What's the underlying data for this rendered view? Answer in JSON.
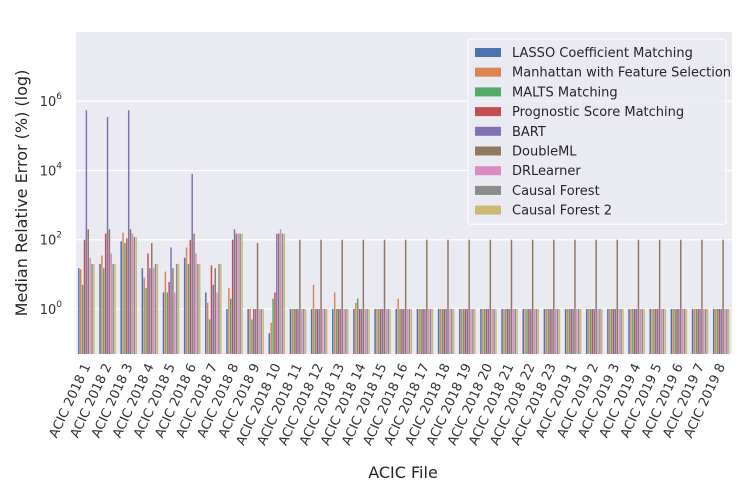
{
  "chart_data": {
    "type": "bar",
    "xlabel": "ACIC File",
    "ylabel": "Median Relative Error (%) (log)",
    "yscale": "log",
    "ylim": [
      0.05,
      100000000
    ],
    "yticks": [
      {
        "value": 1,
        "base": "10",
        "exp": "0"
      },
      {
        "value": 100,
        "base": "10",
        "exp": "2"
      },
      {
        "value": 10000,
        "base": "10",
        "exp": "4"
      },
      {
        "value": 1000000,
        "base": "10",
        "exp": "6"
      }
    ],
    "grid": true,
    "legend_position": "top-right",
    "categories": [
      "ACIC 2018 1",
      "ACIC 2018 2",
      "ACIC 2018 3",
      "ACIC 2018 4",
      "ACIC 2018 5",
      "ACIC 2018 6",
      "ACIC 2018 7",
      "ACIC 2018 8",
      "ACIC 2018 9",
      "ACIC 2018 10",
      "ACIC 2018 11",
      "ACIC 2018 12",
      "ACIC 2018 13",
      "ACIC 2018 14",
      "ACIC 2018 15",
      "ACIC 2018 16",
      "ACIC 2018 17",
      "ACIC 2018 18",
      "ACIC 2018 19",
      "ACIC 2018 20",
      "ACIC 2018 21",
      "ACIC 2018 22",
      "ACIC 2018 23",
      "ACIC 2019 1",
      "ACIC 2019 2",
      "ACIC 2019 3",
      "ACIC 2019 4",
      "ACIC 2019 5",
      "ACIC 2019 6",
      "ACIC 2019 7",
      "ACIC 2019 8"
    ],
    "series": [
      {
        "name": "LASSO Coefficient Matching",
        "color": "#4c72b0",
        "values": [
          15,
          20,
          90,
          15,
          3,
          30,
          3,
          1,
          1,
          0.2,
          1,
          1,
          1,
          1,
          1,
          1,
          1,
          1,
          1,
          1,
          1,
          1,
          1,
          1,
          1,
          1,
          1,
          1,
          1,
          1,
          1
        ]
      },
      {
        "name": "Manhattan with Feature Selection",
        "color": "#dd8452",
        "values": [
          14,
          35,
          160,
          8,
          12,
          60,
          1.5,
          4,
          1,
          0.4,
          1,
          5,
          3,
          1.5,
          1,
          2,
          1,
          1,
          1,
          1,
          1,
          1,
          1,
          1,
          1,
          1,
          1,
          1,
          1,
          1,
          1
        ]
      },
      {
        "name": "MALTS Matching",
        "color": "#55a868",
        "values": [
          5,
          15,
          80,
          4,
          3,
          20,
          0.5,
          2,
          0.5,
          2,
          1,
          1,
          1,
          2,
          1,
          1,
          1,
          1,
          1,
          1,
          1,
          1,
          1,
          1,
          1,
          1,
          1,
          1,
          1,
          1,
          1
        ]
      },
      {
        "name": "Prognostic Score Matching",
        "color": "#c44e52",
        "values": [
          100,
          150,
          110,
          40,
          6,
          100,
          18,
          100,
          1,
          3,
          1,
          1,
          1,
          1,
          1,
          1,
          1,
          1,
          1,
          1,
          1,
          1,
          1,
          1,
          1,
          1,
          1,
          1,
          1,
          1,
          1
        ]
      },
      {
        "name": "BART",
        "color": "#8172b3",
        "values": [
          550000,
          350000,
          550000,
          15,
          60,
          8000,
          5,
          200,
          1,
          150,
          1,
          1,
          1,
          1,
          1,
          1,
          1,
          1,
          1,
          1,
          1,
          1,
          1,
          1,
          1,
          1,
          1,
          1,
          1,
          1,
          1
        ]
      },
      {
        "name": "DoubleML",
        "color": "#937860",
        "values": [
          200,
          200,
          200,
          80,
          15,
          150,
          15,
          150,
          80,
          150,
          100,
          100,
          100,
          100,
          100,
          100,
          100,
          100,
          100,
          100,
          100,
          100,
          100,
          100,
          100,
          100,
          100,
          100,
          100,
          100,
          100
        ]
      },
      {
        "name": "DRLearner",
        "color": "#da8bc3",
        "values": [
          30,
          40,
          150,
          15,
          3,
          40,
          3,
          150,
          1,
          200,
          1,
          1,
          1,
          1,
          1,
          1,
          1,
          1,
          1,
          1,
          1,
          1,
          1,
          1,
          1,
          1,
          1,
          1,
          1,
          1,
          1
        ]
      },
      {
        "name": "Causal Forest",
        "color": "#8c8c8c",
        "values": [
          20,
          20,
          120,
          20,
          20,
          20,
          20,
          150,
          1,
          150,
          1,
          1,
          1,
          1,
          1,
          1,
          1,
          1,
          1,
          1,
          1,
          1,
          1,
          1,
          1,
          1,
          1,
          1,
          1,
          1,
          1
        ]
      },
      {
        "name": "Causal Forest 2",
        "color": "#ccb974",
        "values": [
          20,
          20,
          120,
          20,
          20,
          20,
          20,
          150,
          1,
          150,
          1,
          1,
          1,
          1,
          1,
          1,
          1,
          1,
          1,
          1,
          1,
          1,
          1,
          1,
          1,
          1,
          1,
          1,
          1,
          1,
          1
        ]
      }
    ]
  }
}
